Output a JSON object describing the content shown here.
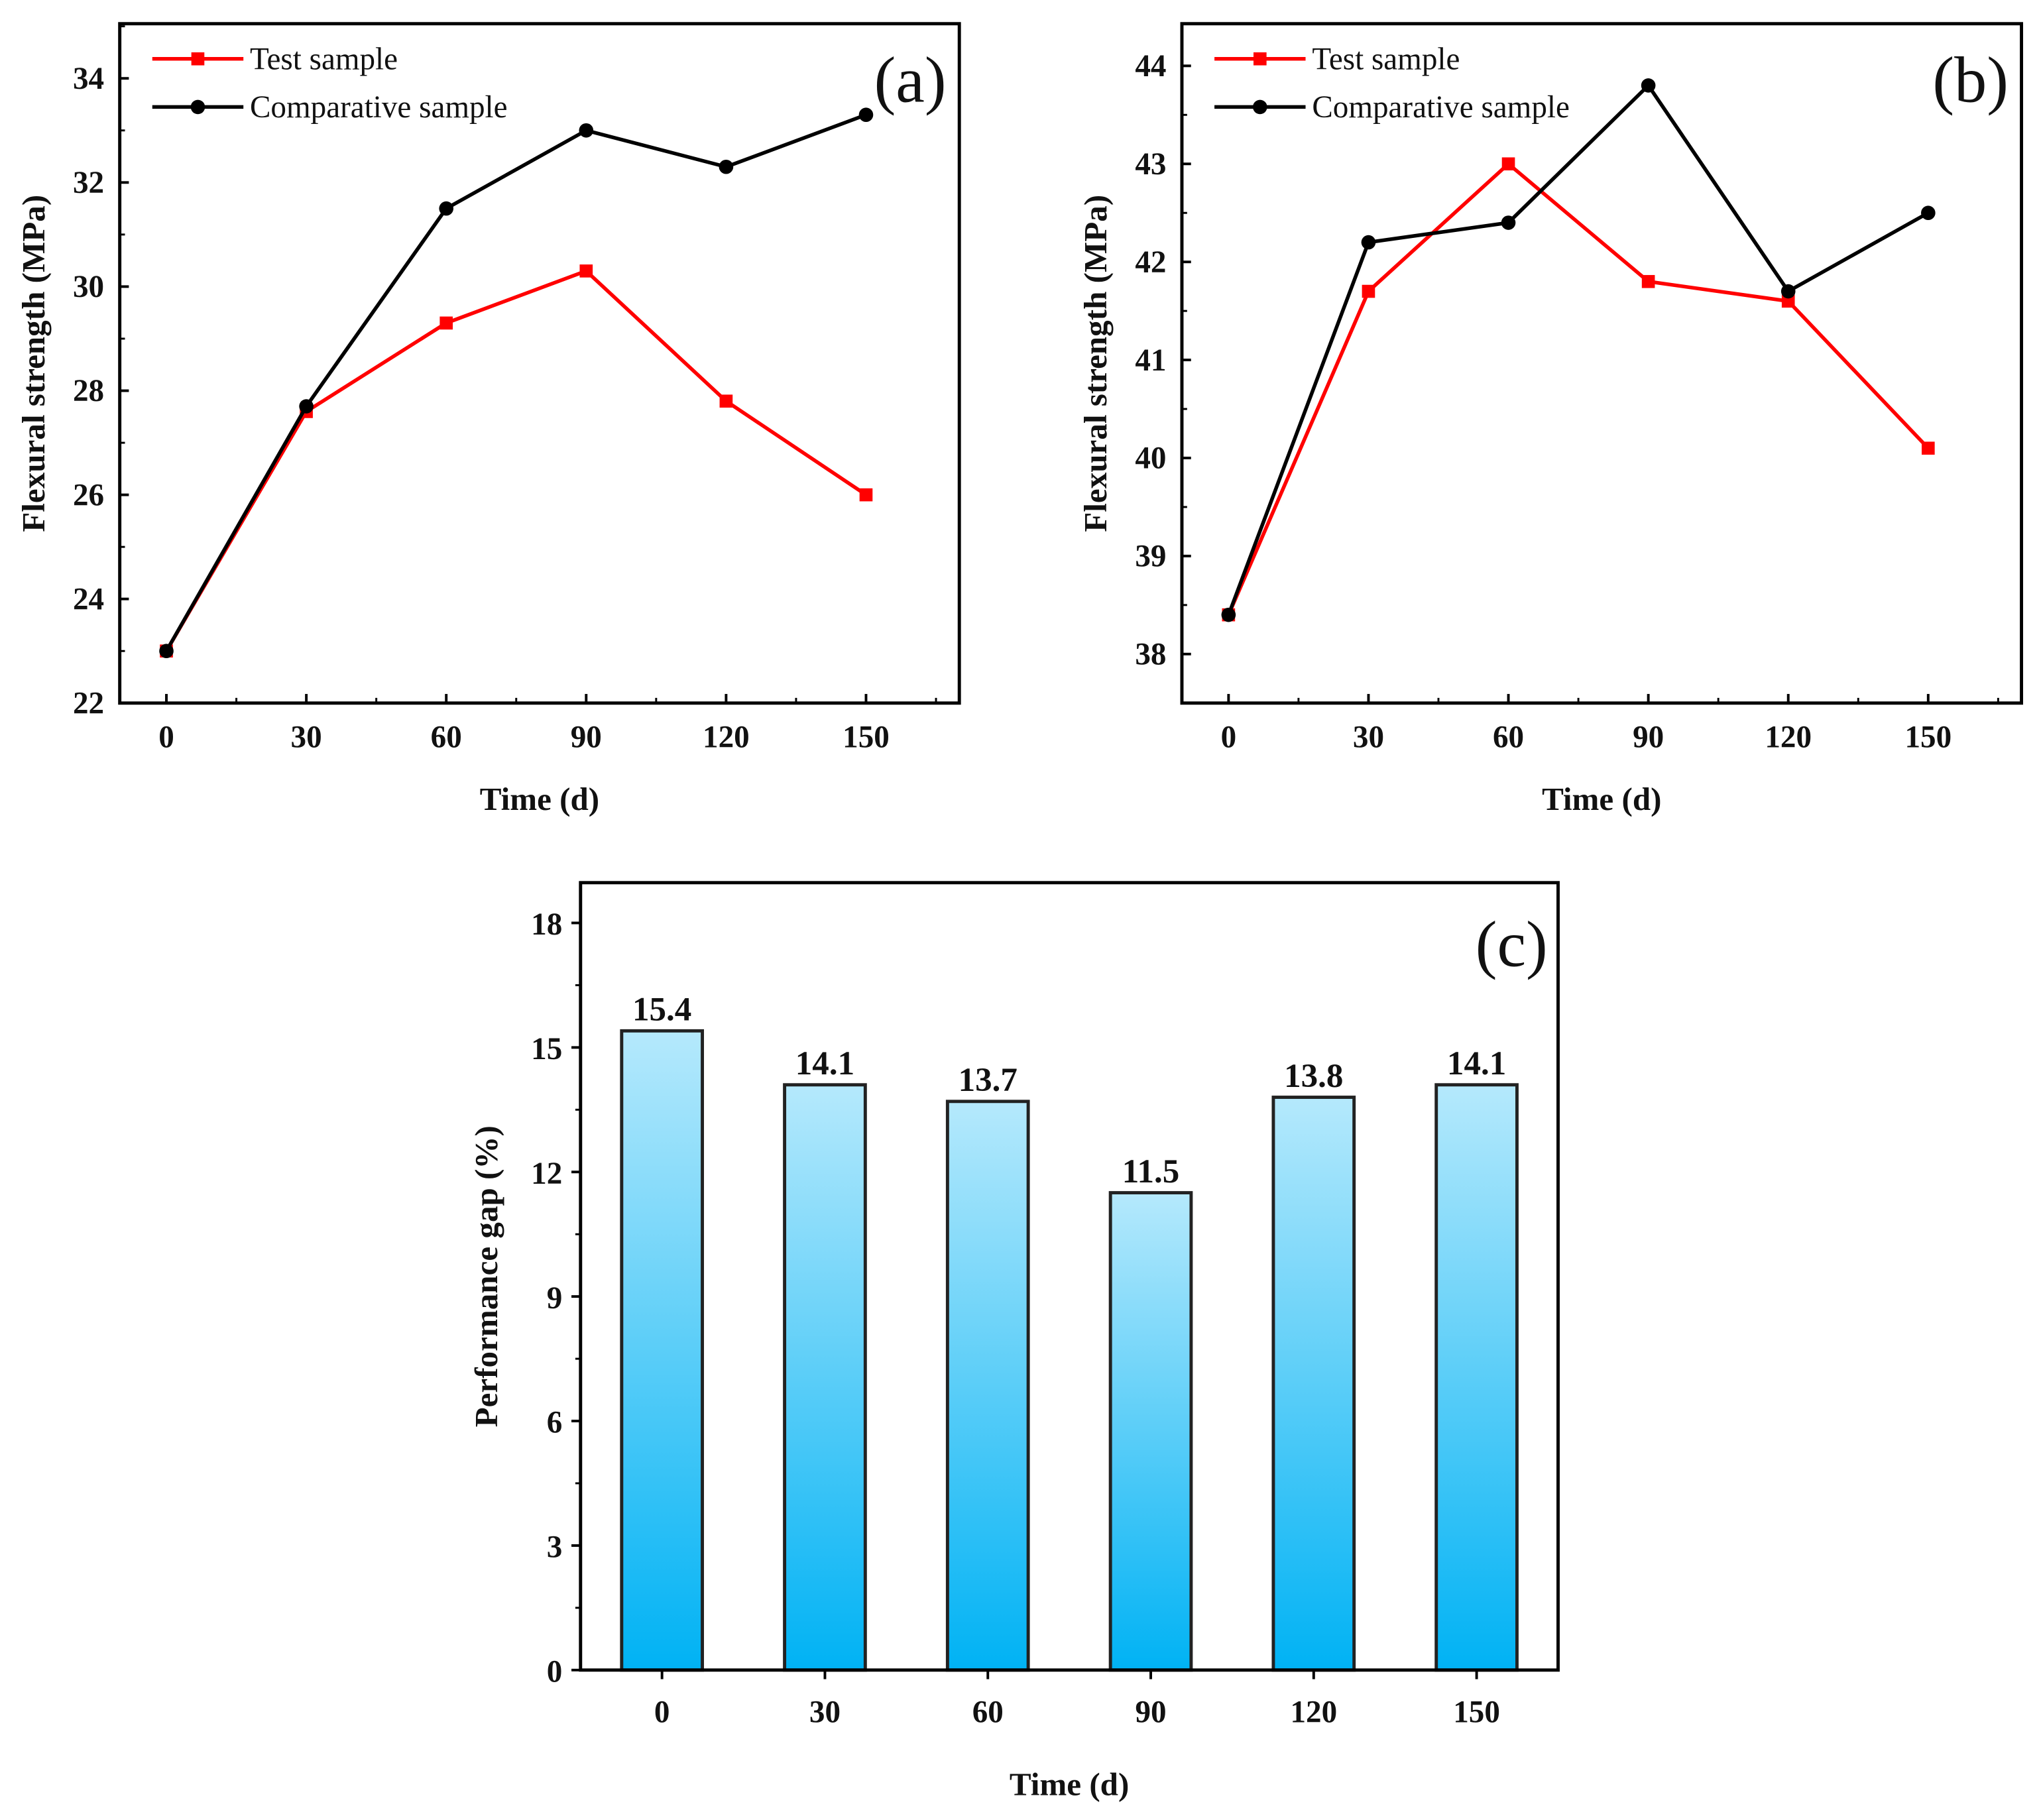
{
  "chart_data": [
    {
      "type": "line",
      "panel_label": "(a)",
      "xlabel": "Time (d)",
      "ylabel": "Flexural strength (MPa)",
      "x": [
        0,
        30,
        60,
        90,
        120,
        150
      ],
      "xticks": [
        0,
        30,
        60,
        90,
        120,
        150
      ],
      "yticks": [
        22,
        24,
        26,
        28,
        30,
        32,
        34
      ],
      "xlim": [
        -10,
        170
      ],
      "ylim": [
        22,
        35.05
      ],
      "legend_position": "top-left",
      "series": [
        {
          "name": "Test sample",
          "color": "#ff0000",
          "marker": "square",
          "values": [
            23.0,
            27.6,
            29.3,
            30.3,
            27.8,
            26.0
          ]
        },
        {
          "name": "Comparative sample",
          "color": "#000000",
          "marker": "circle",
          "values": [
            23.0,
            27.7,
            31.5,
            33.0,
            32.3,
            33.3
          ]
        }
      ]
    },
    {
      "type": "line",
      "panel_label": "(b)",
      "xlabel": "Time (d)",
      "ylabel": "Flexural strength (MPa)",
      "x": [
        0,
        30,
        60,
        90,
        120,
        150
      ],
      "xticks": [
        0,
        30,
        60,
        90,
        120,
        150
      ],
      "yticks": [
        38,
        39,
        40,
        41,
        42,
        43,
        44
      ],
      "xlim": [
        -10,
        170
      ],
      "ylim": [
        37.5,
        44.43
      ],
      "legend_position": "top-left",
      "series": [
        {
          "name": "Test sample",
          "color": "#ff0000",
          "marker": "square",
          "values": [
            38.4,
            41.7,
            43.0,
            41.8,
            41.6,
            40.1
          ]
        },
        {
          "name": "Comparative sample",
          "color": "#000000",
          "marker": "circle",
          "values": [
            38.4,
            42.2,
            42.4,
            43.8,
            41.7,
            42.5
          ]
        }
      ]
    },
    {
      "type": "bar",
      "panel_label": "(c)",
      "xlabel": "Time (d)",
      "ylabel": "Performance gap (%)",
      "categories": [
        "0",
        "30",
        "60",
        "90",
        "120",
        "150"
      ],
      "values": [
        15.4,
        14.1,
        13.7,
        11.5,
        13.8,
        14.1
      ],
      "data_labels": [
        "15.4",
        "14.1",
        "13.7",
        "11.5",
        "13.8",
        "14.1"
      ],
      "yticks": [
        0,
        3,
        6,
        9,
        12,
        15,
        18
      ],
      "ylim": [
        0,
        18.97
      ],
      "bar_gradient": [
        "#b5e9fc",
        "#00b2f4"
      ]
    }
  ]
}
